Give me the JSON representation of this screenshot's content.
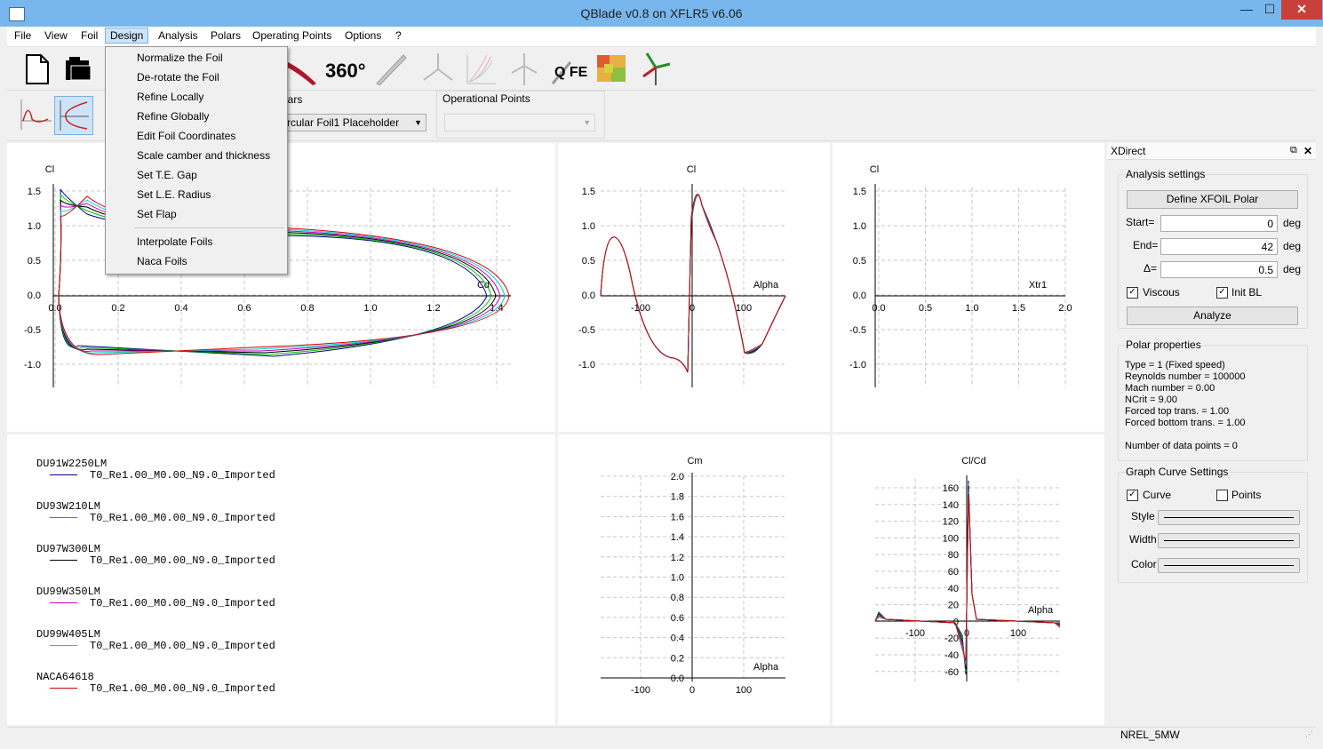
{
  "window": {
    "title": "QBlade v0.8 on XFLR5 v6.06",
    "min": "—",
    "max": "☐",
    "close": "✕"
  },
  "menubar": [
    "File",
    "View",
    "Foil",
    "Design",
    "Analysis",
    "Polars",
    "Operating Points",
    "Options",
    "?"
  ],
  "design_menu": {
    "items": [
      "Normalize the Foil",
      "De-rotate the Foil",
      "Refine Locally",
      "Refine Globally",
      "Edit Foil Coordinates",
      "Scale camber and thickness",
      "Set T.E. Gap",
      "Set L.E. Radius",
      "Set Flap"
    ],
    "items2": [
      "Interpolate Foils",
      "Naca Foils"
    ]
  },
  "toolbar": {
    "icons": [
      "new-file-icon",
      "open-folder-icon",
      "blade-icon",
      "360-icon",
      "single-blade-icon",
      "hawt-rotor-icon",
      "multi-polar-icon",
      "vawt-rotor-icon",
      "qfem-icon",
      "heat-map-icon",
      "turbine-icon"
    ],
    "label_360": "360°",
    "label_qfem": "Q FEM",
    "polars_label": "lars",
    "polars_combo": "rcular Foil1 Placeholder",
    "oppoint_label": "Operational Points",
    "oppoint_combo": ""
  },
  "graphs": {
    "g1": {
      "ylabel": "Cl",
      "xlabel": "Cd",
      "yticks": [
        "1.5",
        "1.0",
        "0.5",
        "0.0",
        "-0.5",
        "-1.0"
      ],
      "xticks": [
        "0.0",
        "0.2",
        "0.4",
        "0.6",
        "0.8",
        "1.0",
        "1.2",
        "1.4"
      ]
    },
    "g2": {
      "ylabel": "Cl",
      "xlabel": "Alpha",
      "yticks": [
        "1.5",
        "1.0",
        "0.5",
        "0.0",
        "-0.5",
        "-1.0"
      ],
      "xticks": [
        "-100",
        "0",
        "100"
      ]
    },
    "g3": {
      "ylabel": "Cl",
      "xlabel": "Xtr1",
      "yticks": [
        "1.5",
        "1.0",
        "0.5",
        "0.0",
        "-0.5",
        "-1.0"
      ],
      "xticks": [
        "0.0",
        "0.5",
        "1.0",
        "1.5",
        "2.0"
      ]
    },
    "g4": {
      "ylabel": "Cm",
      "xlabel": "Alpha",
      "yticks": [
        "2.0",
        "1.8",
        "1.6",
        "1.4",
        "1.2",
        "1.0",
        "0.8",
        "0.6",
        "0.4",
        "0.2",
        "0.0"
      ],
      "xticks": [
        "-100",
        "0",
        "100"
      ]
    },
    "g5": {
      "ylabel": "Cl/Cd",
      "xlabel": "Alpha",
      "yticks": [
        "160",
        "140",
        "120",
        "100",
        "80",
        "60",
        "40",
        "20",
        "0",
        "-20",
        "-40",
        "-60"
      ],
      "xticks": [
        "-100",
        "0",
        "100"
      ]
    }
  },
  "legend": [
    {
      "name": "DU91W2250LM",
      "polar": "T0_Re1.00_M0.00_N9.0_Imported",
      "color": "#00008b"
    },
    {
      "name": "DU93W210LM",
      "polar": "T0_Re1.00_M0.00_N9.0_Imported",
      "color": "#00c000"
    },
    {
      "name": "DU97W300LM",
      "polar": "T0_Re1.00_M0.00_N9.0_Imported",
      "color": "#000000"
    },
    {
      "name": "DU99W350LM",
      "polar": "T0_Re1.00_M0.00_N9.0_Imported",
      "color": "#c000c0"
    },
    {
      "name": "DU99W405LM",
      "polar": "T0_Re1.00_M0.00_N9.0_Imported",
      "color": "#00d0d0"
    },
    {
      "name": "NACA64618",
      "polar": "T0_Re1.00_M0.00_N9.0_Imported",
      "color": "#d00000"
    }
  ],
  "xdirect": {
    "title": "XDirect",
    "analysis_settings": "Analysis settings",
    "define_polar": "Define XFOIL Polar",
    "start_label": "Start=",
    "start_value": "0",
    "start_unit": "deg",
    "end_label": "End=",
    "end_value": "42",
    "end_unit": "deg",
    "delta_label": "Δ=",
    "delta_value": "0.5",
    "delta_unit": "deg",
    "viscous": "Viscous",
    "init_bl": "Init BL",
    "check": "✓",
    "analyze": "Analyze",
    "polar_properties": "Polar properties",
    "props": [
      "Type = 1 (Fixed speed)",
      "Reynolds number = 100000",
      "Mach number =  0.00",
      "NCrit =   9.00",
      "Forced top trans. =   1.00",
      "Forced bottom trans. =   1.00",
      "",
      "Number of data points = 0"
    ],
    "graph_curve_settings": "Graph Curve Settings",
    "curve": "Curve",
    "points": "Points",
    "style": "Style",
    "width": "Width",
    "color": "Color"
  },
  "status": "NREL_5MW"
}
